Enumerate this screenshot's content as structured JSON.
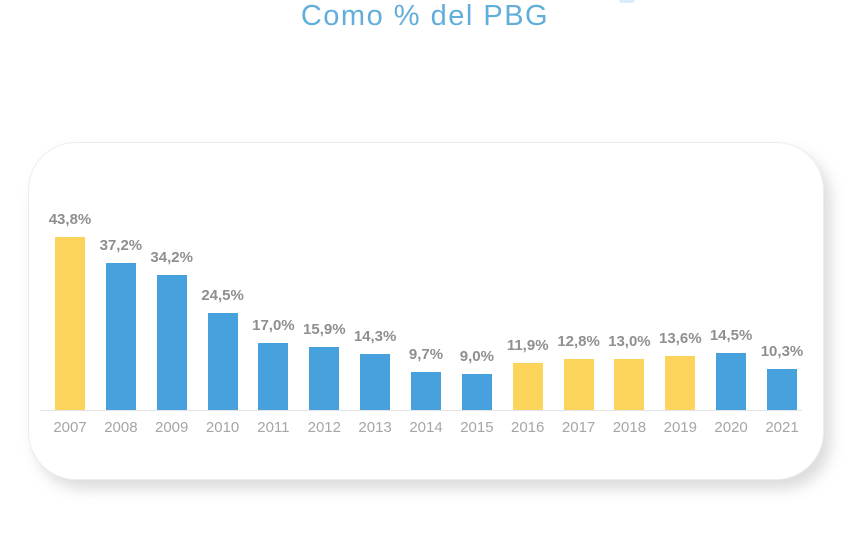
{
  "page": {
    "title": "Como % del PBG"
  },
  "colors": {
    "title_text": "#62aedb",
    "bar_blue": "#47a1dc",
    "bar_yellow": "#fcd45c",
    "value_label": "#8f8f8f",
    "year_label": "#a6a6a6",
    "axis_line": "#e2e2e2",
    "card_border": "#ededed",
    "deco": "#d9ecf8"
  },
  "chart_data": {
    "type": "bar",
    "title": "Como % del PBG",
    "categories": [
      "2007",
      "2008",
      "2009",
      "2010",
      "2011",
      "2012",
      "2013",
      "2014",
      "2015",
      "2016",
      "2017",
      "2018",
      "2019",
      "2020",
      "2021"
    ],
    "values": [
      43.8,
      37.2,
      34.2,
      24.5,
      17.0,
      15.9,
      14.3,
      9.7,
      9.0,
      11.9,
      12.8,
      13.0,
      13.6,
      14.5,
      10.3
    ],
    "value_labels": [
      "43,8%",
      "37,2%",
      "34,2%",
      "24,5%",
      "17,0%",
      "15,9%",
      "14,3%",
      "9,7%",
      "9,0%",
      "11,9%",
      "12,8%",
      "13,0%",
      "13,6%",
      "14,5%",
      "10,3%"
    ],
    "bar_colors": [
      "yellow",
      "blue",
      "blue",
      "blue",
      "blue",
      "blue",
      "blue",
      "blue",
      "blue",
      "yellow",
      "yellow",
      "yellow",
      "yellow",
      "blue",
      "blue"
    ],
    "xlabel": "",
    "ylabel": "",
    "ylim": [
      0,
      45
    ],
    "grid": false,
    "legend": "none",
    "y_axis_visible": false,
    "data_labels_visible": true
  }
}
